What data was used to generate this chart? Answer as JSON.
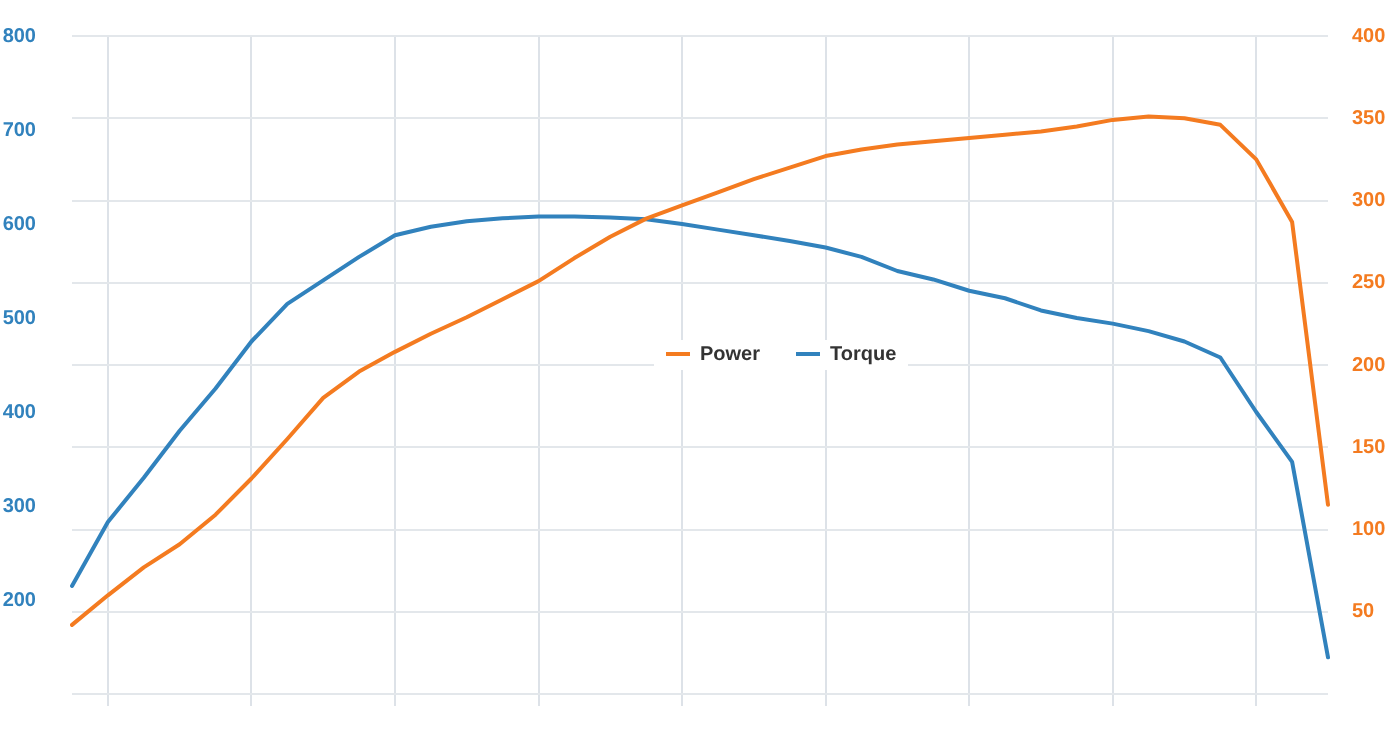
{
  "chart_data": {
    "type": "line",
    "categories": [
      null,
      null,
      null,
      null,
      null,
      null,
      null,
      null,
      null,
      null,
      null,
      null,
      null,
      null,
      null,
      null,
      null,
      null,
      null,
      null,
      null,
      null,
      null,
      null,
      null,
      null,
      null,
      null,
      null,
      null,
      null,
      null,
      null,
      null,
      null,
      null
    ],
    "ylim": [
      100,
      800
    ],
    "yticks": [
      200,
      300,
      400,
      500,
      600,
      700,
      800
    ],
    "y2lim": [
      0,
      400
    ],
    "y2ticks": [
      {
        "value": 0,
        "label": null
      },
      50,
      100,
      150,
      200,
      250,
      300,
      350,
      400
    ],
    "tick_labels": "y",
    "grid": true,
    "legend": "center",
    "marker": "none",
    "line_style": "solid",
    "series": [
      {
        "name": "Power",
        "color": "#f47b20",
        "axis": "y2",
        "values": [
          42,
          60,
          77,
          91,
          109,
          131,
          155,
          180,
          196,
          208,
          219,
          229,
          240,
          251,
          265,
          278,
          289,
          297,
          305,
          313,
          320,
          327,
          331,
          334,
          336,
          338,
          340,
          342,
          345,
          349,
          351,
          350,
          346,
          325,
          287,
          115
        ]
      },
      {
        "name": "Torque",
        "color": "#3182bd",
        "axis": "y",
        "values": [
          215,
          283,
          330,
          380,
          425,
          475,
          515,
          540,
          565,
          588,
          597,
          603,
          606,
          608,
          608,
          607,
          605,
          600,
          594,
          588,
          582,
          575,
          565,
          550,
          541,
          529,
          521,
          508,
          500,
          494,
          486,
          475,
          458,
          400,
          347,
          139
        ]
      }
    ]
  }
}
